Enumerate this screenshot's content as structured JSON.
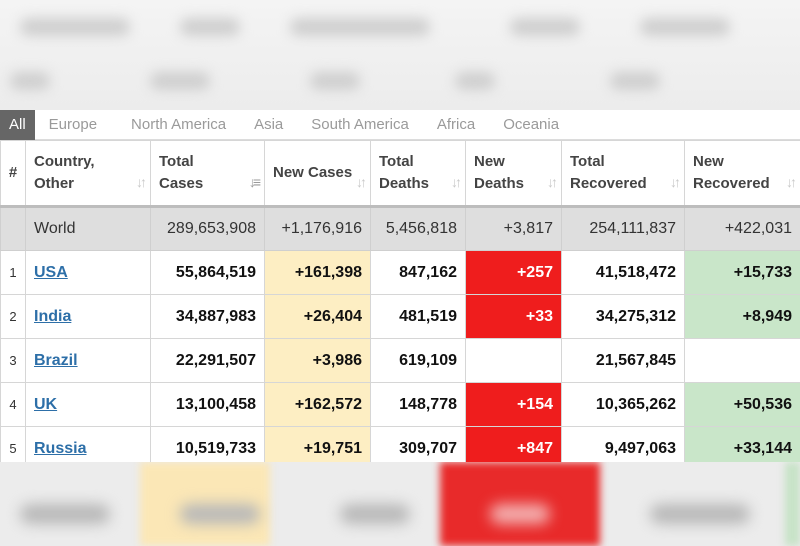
{
  "tabs": [
    "All",
    "Europe",
    "North America",
    "Asia",
    "South America",
    "Africa",
    "Oceania"
  ],
  "columns": {
    "rank": "#",
    "country": "Country, Other",
    "total_cases": "Total Cases",
    "new_cases": "New Cases",
    "total_deaths": "Total Deaths",
    "new_deaths": "New Deaths",
    "total_recovered": "Total Recovered",
    "new_recovered": "New Recovered"
  },
  "world": {
    "country": "World",
    "total_cases": "289,653,908",
    "new_cases": "+1,176,916",
    "total_deaths": "5,456,818",
    "new_deaths": "+3,817",
    "total_recovered": "254,111,837",
    "new_recovered": "+422,031"
  },
  "rows": [
    {
      "rank": "1",
      "country": "USA",
      "total_cases": "55,864,519",
      "new_cases": "+161,398",
      "total_deaths": "847,162",
      "new_deaths": "+257",
      "total_recovered": "41,518,472",
      "new_recovered": "+15,733"
    },
    {
      "rank": "2",
      "country": "India",
      "total_cases": "34,887,983",
      "new_cases": "+26,404",
      "total_deaths": "481,519",
      "new_deaths": "+33",
      "total_recovered": "34,275,312",
      "new_recovered": "+8,949"
    },
    {
      "rank": "3",
      "country": "Brazil",
      "total_cases": "22,291,507",
      "new_cases": "+3,986",
      "total_deaths": "619,109",
      "new_deaths": "",
      "total_recovered": "21,567,845",
      "new_recovered": ""
    },
    {
      "rank": "4",
      "country": "UK",
      "total_cases": "13,100,458",
      "new_cases": "+162,572",
      "total_deaths": "148,778",
      "new_deaths": "+154",
      "total_recovered": "10,365,262",
      "new_recovered": "+50,536"
    },
    {
      "rank": "5",
      "country": "Russia",
      "total_cases": "10,519,733",
      "new_cases": "+19,751",
      "total_deaths": "309,707",
      "new_deaths": "+847",
      "total_recovered": "9,497,063",
      "new_recovered": "+33,144"
    }
  ],
  "colors": {
    "new_cases_highlight": "#fdeec3",
    "new_deaths_highlight": "#ef1d1d",
    "new_recovered_highlight": "#c9e6c9",
    "active_tab": "#666666",
    "link": "#2d6fa8"
  },
  "icons": {
    "sort_default": "sort-arrows-icon",
    "sort_active": "sort-descending-icon"
  }
}
